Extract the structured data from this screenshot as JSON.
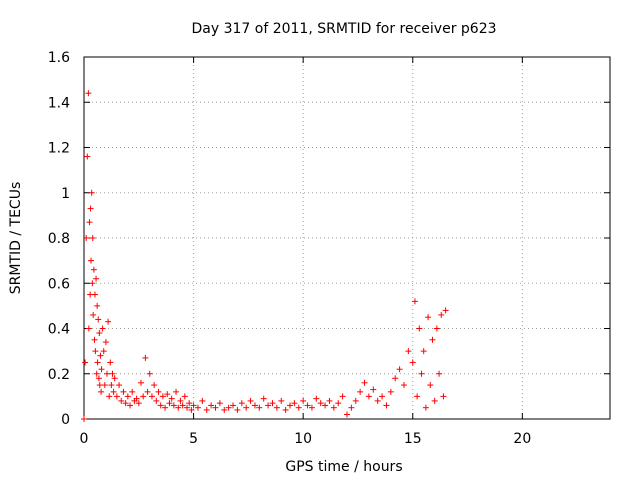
{
  "chart_data": {
    "type": "scatter",
    "title": "Day 317 of 2011, SRMTID for receiver p623",
    "xlabel": "GPS time / hours",
    "ylabel": "SRMTID / TECUs",
    "xlim": [
      0,
      24
    ],
    "ylim": [
      0,
      1.6
    ],
    "x_ticks": [
      0,
      5,
      10,
      15,
      20
    ],
    "y_ticks": [
      0,
      0.2,
      0.4,
      0.6,
      0.8,
      1,
      1.2,
      1.4,
      1.6
    ],
    "x_tick_labels": [
      "0",
      "5",
      "10",
      "15",
      "20"
    ],
    "y_tick_labels": [
      "0",
      "0.2",
      "0.4",
      "0.6",
      "0.8",
      "1",
      "1.2",
      "1.4",
      "1.6"
    ],
    "grid": true,
    "marker": "+",
    "series": [
      {
        "name": "SRMTID",
        "color": "#ff0000",
        "x": [
          0.0,
          0.05,
          0.1,
          0.15,
          0.2,
          0.22,
          0.25,
          0.28,
          0.3,
          0.32,
          0.35,
          0.38,
          0.4,
          0.42,
          0.45,
          0.48,
          0.5,
          0.52,
          0.55,
          0.58,
          0.6,
          0.62,
          0.65,
          0.68,
          0.7,
          0.72,
          0.75,
          0.78,
          0.8,
          0.85,
          0.9,
          0.95,
          1.0,
          1.05,
          1.1,
          1.15,
          1.2,
          1.25,
          1.3,
          1.35,
          1.4,
          1.5,
          1.6,
          1.7,
          1.8,
          1.9,
          2.0,
          2.1,
          2.2,
          2.3,
          2.4,
          2.5,
          2.6,
          2.7,
          2.8,
          2.9,
          3.0,
          3.1,
          3.2,
          3.3,
          3.4,
          3.5,
          3.6,
          3.7,
          3.8,
          3.9,
          4.0,
          4.1,
          4.2,
          4.3,
          4.4,
          4.5,
          4.6,
          4.7,
          4.8,
          4.9,
          5.0,
          5.2,
          5.4,
          5.6,
          5.8,
          6.0,
          6.2,
          6.4,
          6.6,
          6.8,
          7.0,
          7.2,
          7.4,
          7.6,
          7.8,
          8.0,
          8.2,
          8.4,
          8.6,
          8.8,
          9.0,
          9.2,
          9.4,
          9.6,
          9.8,
          10.0,
          10.2,
          10.4,
          10.6,
          10.8,
          11.0,
          11.2,
          11.4,
          11.6,
          11.8,
          12.0,
          12.2,
          12.4,
          12.6,
          12.8,
          13.0,
          13.2,
          13.4,
          13.6,
          13.8,
          14.0,
          14.2,
          14.4,
          14.6,
          14.8,
          15.0,
          15.1,
          15.2,
          15.3,
          15.4,
          15.5,
          15.6,
          15.7,
          15.8,
          15.9,
          16.0,
          16.1,
          16.2,
          16.3,
          16.4,
          16.5
        ],
        "y": [
          0.0,
          0.25,
          0.8,
          1.16,
          1.44,
          0.4,
          0.87,
          0.55,
          0.93,
          0.7,
          1.0,
          0.6,
          0.8,
          0.46,
          0.66,
          0.35,
          0.55,
          0.3,
          0.62,
          0.2,
          0.5,
          0.25,
          0.44,
          0.18,
          0.38,
          0.15,
          0.28,
          0.12,
          0.22,
          0.4,
          0.3,
          0.15,
          0.34,
          0.2,
          0.43,
          0.1,
          0.25,
          0.15,
          0.2,
          0.12,
          0.18,
          0.1,
          0.15,
          0.08,
          0.12,
          0.07,
          0.1,
          0.06,
          0.12,
          0.08,
          0.09,
          0.07,
          0.16,
          0.1,
          0.27,
          0.12,
          0.2,
          0.1,
          0.15,
          0.08,
          0.12,
          0.06,
          0.1,
          0.05,
          0.11,
          0.07,
          0.09,
          0.06,
          0.12,
          0.05,
          0.08,
          0.06,
          0.1,
          0.05,
          0.07,
          0.04,
          0.06,
          0.05,
          0.08,
          0.04,
          0.06,
          0.05,
          0.07,
          0.04,
          0.05,
          0.06,
          0.04,
          0.07,
          0.05,
          0.08,
          0.06,
          0.05,
          0.09,
          0.06,
          0.07,
          0.05,
          0.08,
          0.04,
          0.06,
          0.07,
          0.05,
          0.08,
          0.06,
          0.05,
          0.09,
          0.07,
          0.06,
          0.08,
          0.05,
          0.07,
          0.1,
          0.02,
          0.05,
          0.08,
          0.12,
          0.16,
          0.1,
          0.13,
          0.08,
          0.1,
          0.06,
          0.12,
          0.18,
          0.22,
          0.15,
          0.3,
          0.25,
          0.52,
          0.1,
          0.4,
          0.2,
          0.3,
          0.05,
          0.45,
          0.15,
          0.35,
          0.08,
          0.4,
          0.2,
          0.46,
          0.1,
          0.48
        ]
      }
    ]
  }
}
